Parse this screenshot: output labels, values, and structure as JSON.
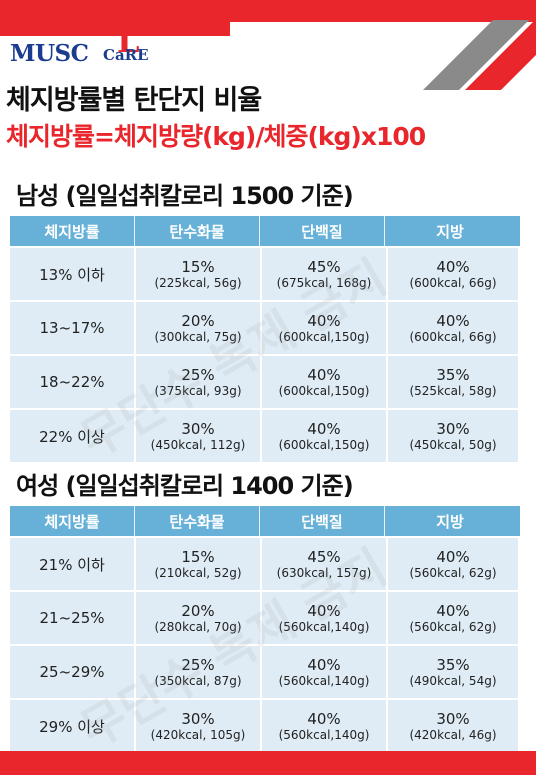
{
  "logo": {
    "main": "MUSC",
    "l": "L",
    "care": "CaRE"
  },
  "title_line1": "체지방률별 탄단지 비율",
  "title_line2": "체지방률=체지방량(kg)/체중(kg)x100",
  "watermark": "무단수 복제 금지",
  "headers": [
    "체지방률",
    "탄수화물",
    "단백질",
    "지방"
  ],
  "male": {
    "title": "남성 (일일섭취칼로리 1500 기준)",
    "rows": [
      {
        "label": "13% 이하",
        "carb": {
          "pct": "15%",
          "detail": "(225kcal, 56g)"
        },
        "protein": {
          "pct": "45%",
          "detail": "(675kcal, 168g)"
        },
        "fat": {
          "pct": "40%",
          "detail": "(600kcal, 66g)"
        }
      },
      {
        "label": "13~17%",
        "carb": {
          "pct": "20%",
          "detail": "(300kcal, 75g)"
        },
        "protein": {
          "pct": "40%",
          "detail": "(600kcal,150g)"
        },
        "fat": {
          "pct": "40%",
          "detail": "(600kcal, 66g)"
        }
      },
      {
        "label": "18~22%",
        "carb": {
          "pct": "25%",
          "detail": "(375kcal, 93g)"
        },
        "protein": {
          "pct": "40%",
          "detail": "(600kcal,150g)"
        },
        "fat": {
          "pct": "35%",
          "detail": "(525kcal, 58g)"
        }
      },
      {
        "label": "22% 이상",
        "carb": {
          "pct": "30%",
          "detail": "(450kcal, 112g)"
        },
        "protein": {
          "pct": "40%",
          "detail": "(600kcal,150g)"
        },
        "fat": {
          "pct": "30%",
          "detail": "(450kcal, 50g)"
        }
      }
    ]
  },
  "female": {
    "title": "여성 (일일섭취칼로리 1400 기준)",
    "rows": [
      {
        "label": "21% 이하",
        "carb": {
          "pct": "15%",
          "detail": "(210kcal, 52g)"
        },
        "protein": {
          "pct": "45%",
          "detail": "(630kcal, 157g)"
        },
        "fat": {
          "pct": "40%",
          "detail": "(560kcal, 62g)"
        }
      },
      {
        "label": "21~25%",
        "carb": {
          "pct": "20%",
          "detail": "(280kcal, 70g)"
        },
        "protein": {
          "pct": "40%",
          "detail": "(560kcal,140g)"
        },
        "fat": {
          "pct": "40%",
          "detail": "(560kcal, 62g)"
        }
      },
      {
        "label": "25~29%",
        "carb": {
          "pct": "25%",
          "detail": "(350kcal, 87g)"
        },
        "protein": {
          "pct": "40%",
          "detail": "(560kcal,140g)"
        },
        "fat": {
          "pct": "35%",
          "detail": "(490kcal, 54g)"
        }
      },
      {
        "label": "29% 이상",
        "carb": {
          "pct": "30%",
          "detail": "(420kcal, 105g)"
        },
        "protein": {
          "pct": "40%",
          "detail": "(560kcal,140g)"
        },
        "fat": {
          "pct": "30%",
          "detail": "(420kcal, 46g)"
        }
      }
    ]
  },
  "colors": {
    "accent_red": "#e8262b",
    "header_blue": "#67b1d8",
    "cell_bg": "#dfecf5",
    "logo_blue": "#1a3d8f"
  }
}
